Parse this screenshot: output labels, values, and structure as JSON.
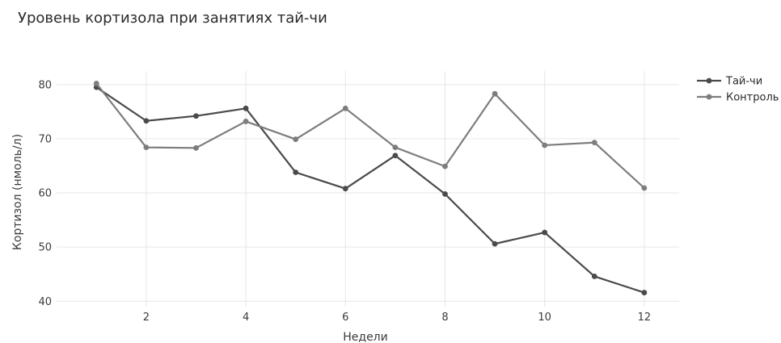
{
  "chart_data": {
    "type": "line",
    "title": "Уровень кортизола при занятиях тай-чи",
    "xlabel": "Недели",
    "ylabel": "Кортизол (нмоль/л)",
    "x": [
      1,
      2,
      3,
      4,
      5,
      6,
      7,
      8,
      9,
      10,
      11,
      12
    ],
    "xlim": [
      0.2,
      12.7
    ],
    "ylim": [
      39,
      82.5
    ],
    "xticks": [
      2,
      4,
      6,
      8,
      10,
      12
    ],
    "yticks": [
      40,
      50,
      60,
      70,
      80
    ],
    "grid": true,
    "legend": "top-right",
    "series": [
      {
        "name": "Тай-чи",
        "color": "#4a4a4a",
        "values": [
          79.5,
          73.3,
          74.2,
          75.6,
          63.8,
          60.8,
          66.9,
          59.8,
          50.6,
          52.7,
          44.6,
          41.6
        ]
      },
      {
        "name": "Контроль",
        "color": "#7d7d7d",
        "values": [
          80.2,
          68.4,
          68.3,
          73.2,
          69.9,
          75.6,
          68.4,
          64.9,
          78.3,
          68.8,
          69.3,
          60.9
        ]
      }
    ]
  }
}
